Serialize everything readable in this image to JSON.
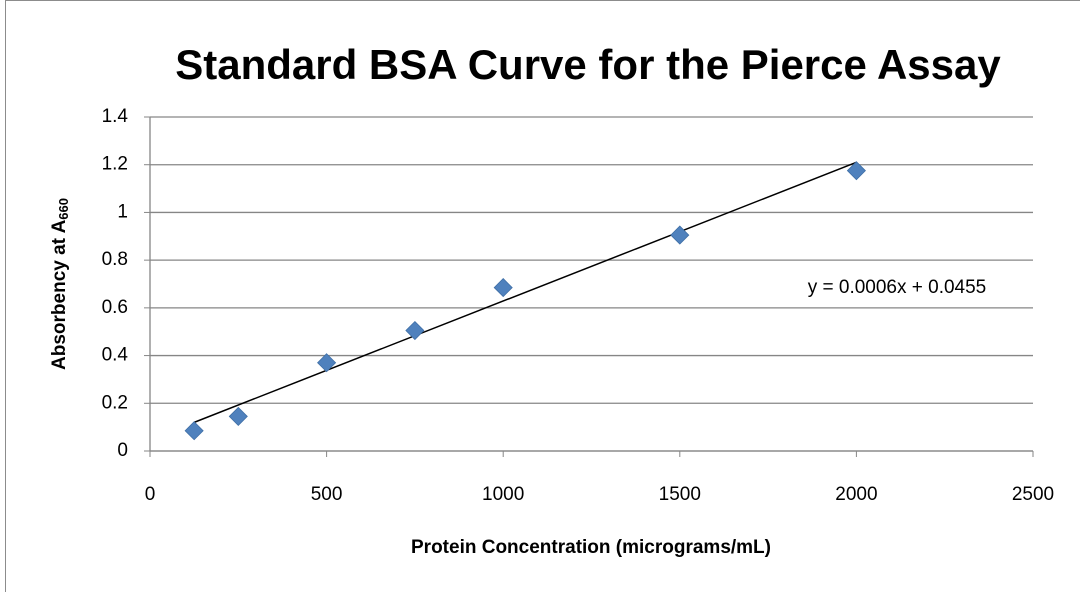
{
  "chart_data": {
    "type": "scatter",
    "title": "Standard BSA Curve for the Pierce Assay",
    "x_label": "Protein Concentration (micrograms/mL)",
    "y_label": {
      "text": "Absorbency at A",
      "subscript": "660"
    },
    "series": [
      {
        "color": "#4f81bd",
        "x": [
          125,
          250,
          500,
          750,
          1000,
          1500,
          2000
        ],
        "values": [
          0.085,
          0.145,
          0.37,
          0.505,
          0.685,
          0.905,
          1.175
        ]
      }
    ],
    "trendline": {
      "color": "#000000",
      "x": [
        125,
        2000
      ],
      "values": [
        0.12,
        1.21
      ]
    },
    "annotation": "y = 0.0006x + 0.0455",
    "xlim": [
      0,
      2500
    ],
    "xticks": [
      0,
      500,
      1000,
      1500,
      2000,
      2500
    ],
    "ylim": [
      0,
      1.4
    ],
    "yticks": [
      0,
      0.2,
      0.4,
      0.6,
      0.8,
      1,
      1.2,
      1.4
    ],
    "grid": true
  }
}
